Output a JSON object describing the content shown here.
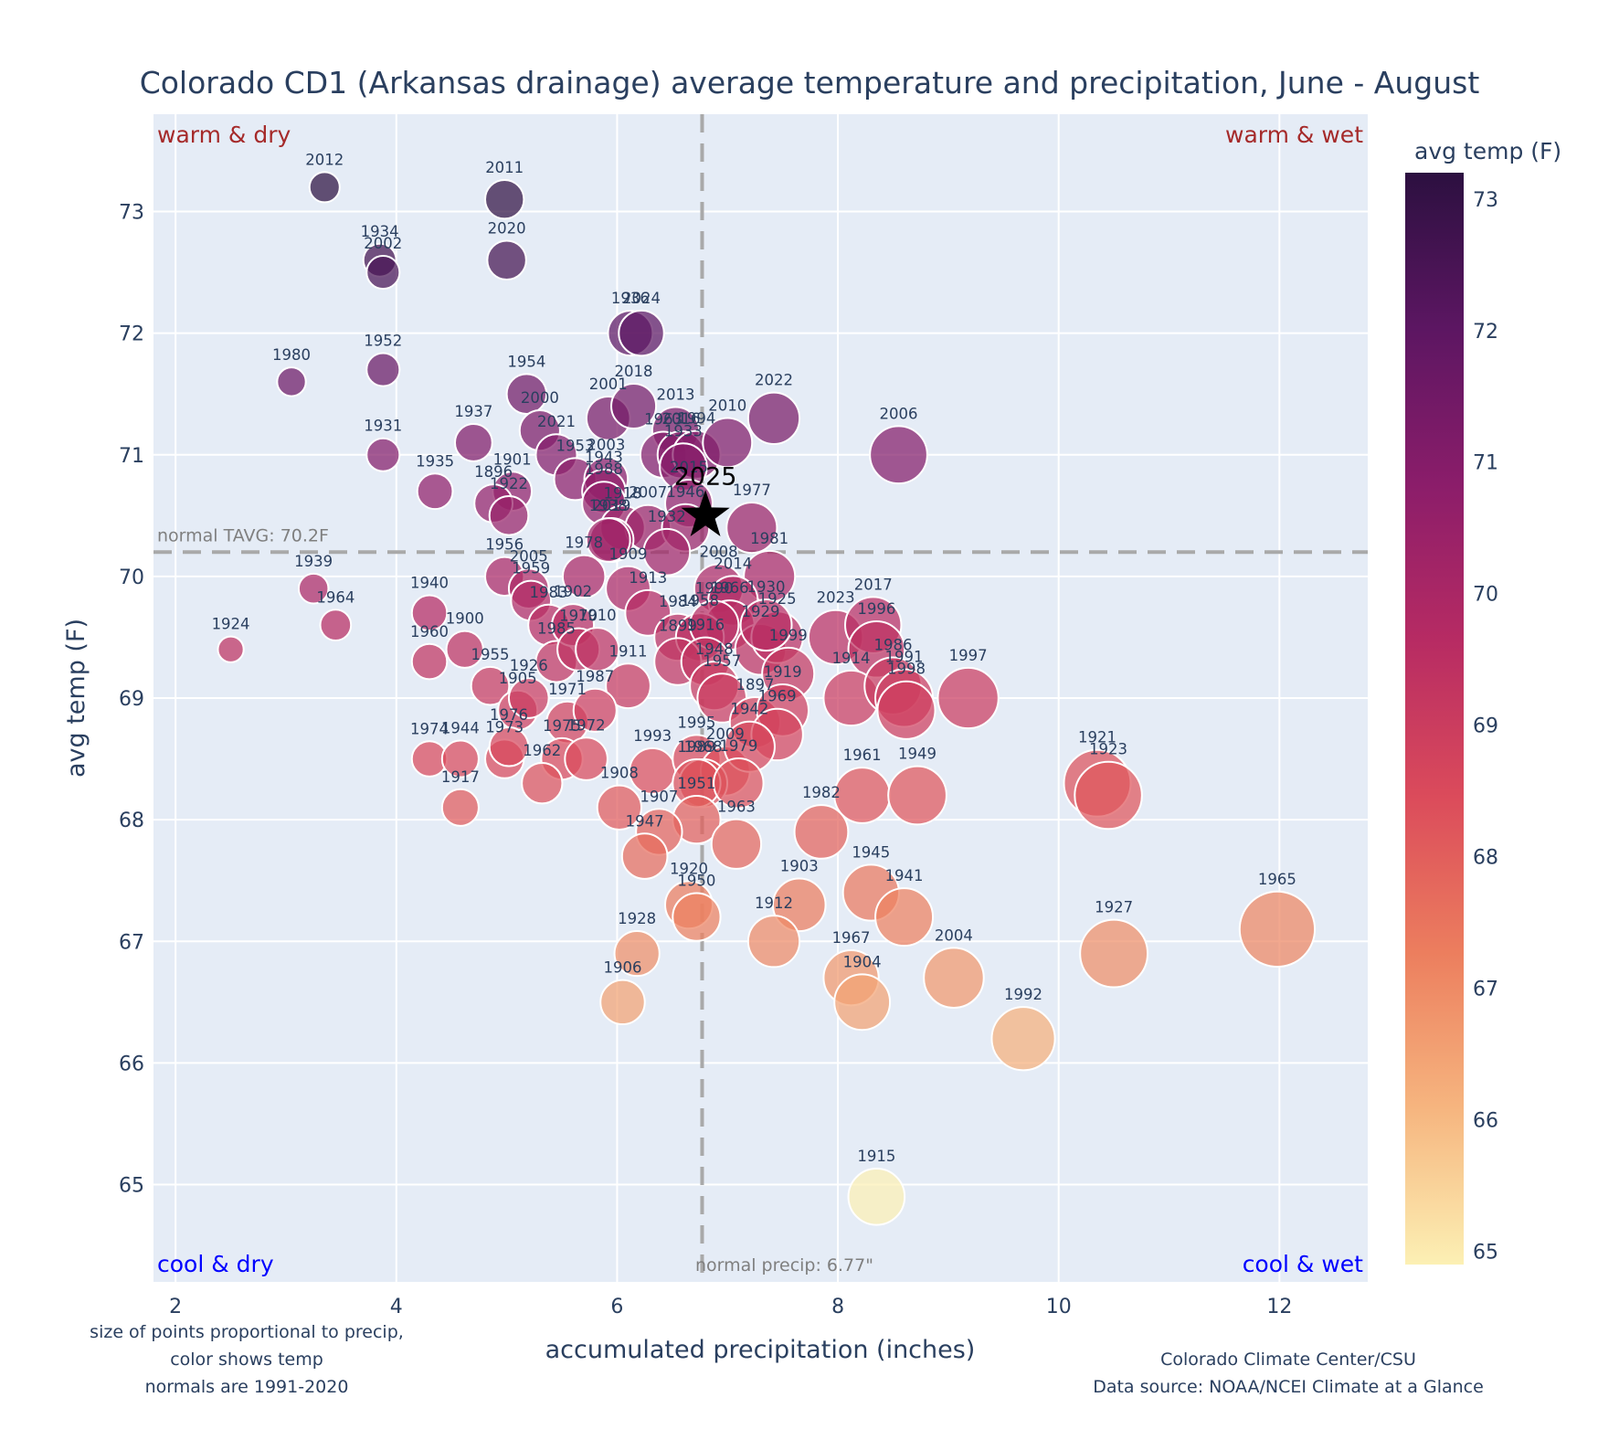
{
  "chart_data": {
    "type": "scatter",
    "title": "Colorado CD1 (Arkansas drainage) average temperature and precipitation, June - August",
    "xlabel": "accumulated precipitation (inches)",
    "ylabel": "avg temp (F)",
    "xlim": [
      1.8,
      12.8
    ],
    "ylim": [
      64.2,
      73.8
    ],
    "x_ticks": [
      2,
      4,
      6,
      8,
      10,
      12
    ],
    "y_ticks": [
      65,
      66,
      67,
      68,
      69,
      70,
      71,
      72,
      73
    ],
    "grid": true,
    "colorbar": {
      "title": "avg temp (F)",
      "range": [
        64.9,
        73.2
      ],
      "ticks": [
        65,
        66,
        67,
        68,
        69,
        70,
        71,
        72,
        73
      ],
      "colorscale": [
        "#fcf0b4",
        "#f6b57f",
        "#ec7e5e",
        "#db4b5b",
        "#b72b63",
        "#8b1d6a",
        "#5c1662",
        "#2c1040"
      ]
    },
    "normals": {
      "temp": 70.2,
      "temp_label": "normal TAVG: 70.2F",
      "precip": 6.77,
      "precip_label": "normal precip: 6.77\""
    },
    "quadrants": {
      "top_left": "warm & dry",
      "top_right": "warm & wet",
      "bottom_left": "cool & dry",
      "bottom_right": "cool & wet"
    },
    "highlight": {
      "year": "2025",
      "x": 6.8,
      "y": 70.5
    },
    "notes": {
      "left": [
        "size of points proportional to precip,",
        "color shows temp",
        "normals are 1991-2020"
      ],
      "right": [
        "Colorado Climate Center/CSU",
        "Data source: NOAA/NCEI Climate at a Glance"
      ]
    },
    "points": [
      {
        "year": "2012",
        "x": 3.35,
        "y": 73.2
      },
      {
        "year": "2011",
        "x": 4.98,
        "y": 73.1
      },
      {
        "year": "1934",
        "x": 3.85,
        "y": 72.6
      },
      {
        "year": "2002",
        "x": 3.88,
        "y": 72.5
      },
      {
        "year": "2020",
        "x": 5.0,
        "y": 72.6
      },
      {
        "year": "1936",
        "x": 6.12,
        "y": 72.0
      },
      {
        "year": "2024",
        "x": 6.22,
        "y": 72.0
      },
      {
        "year": "1980",
        "x": 3.05,
        "y": 71.6
      },
      {
        "year": "1952",
        "x": 3.88,
        "y": 71.7
      },
      {
        "year": "1954",
        "x": 5.18,
        "y": 71.5
      },
      {
        "year": "2022",
        "x": 7.42,
        "y": 71.3
      },
      {
        "year": "2006",
        "x": 8.55,
        "y": 71.0
      },
      {
        "year": "1931",
        "x": 3.88,
        "y": 71.0
      },
      {
        "year": "1937",
        "x": 4.7,
        "y": 71.1
      },
      {
        "year": "2000",
        "x": 5.3,
        "y": 71.2
      },
      {
        "year": "2001",
        "x": 5.92,
        "y": 71.3
      },
      {
        "year": "2018",
        "x": 6.15,
        "y": 71.4
      },
      {
        "year": "2013",
        "x": 6.53,
        "y": 71.2
      },
      {
        "year": "1960b",
        "label": "1963",
        "x": 6.42,
        "y": 71.0
      },
      {
        "year": "2016",
        "x": 6.58,
        "y": 71.0
      },
      {
        "year": "1994",
        "x": 6.72,
        "y": 71.0
      },
      {
        "year": "2010",
        "x": 7.0,
        "y": 71.1
      },
      {
        "year": "2021",
        "x": 5.45,
        "y": 71.0
      },
      {
        "year": "1953",
        "x": 5.62,
        "y": 70.8
      },
      {
        "year": "2003",
        "x": 5.9,
        "y": 70.8
      },
      {
        "year": "1943",
        "x": 5.88,
        "y": 70.7
      },
      {
        "year": "1933",
        "x": 6.6,
        "y": 70.9
      },
      {
        "year": "1935",
        "x": 4.35,
        "y": 70.7
      },
      {
        "year": "1901",
        "x": 5.05,
        "y": 70.7
      },
      {
        "year": "1896",
        "x": 4.88,
        "y": 70.6
      },
      {
        "year": "1922",
        "x": 5.02,
        "y": 70.5
      },
      {
        "year": "1988",
        "x": 5.88,
        "y": 70.6
      },
      {
        "year": "1918",
        "x": 6.05,
        "y": 70.4
      },
      {
        "year": "2007",
        "x": 6.28,
        "y": 70.4
      },
      {
        "year": "2015",
        "x": 6.65,
        "y": 70.6
      },
      {
        "year": "2019",
        "x": 5.95,
        "y": 70.3
      },
      {
        "year": "1946",
        "x": 6.62,
        "y": 70.4
      },
      {
        "year": "1977",
        "x": 7.22,
        "y": 70.4
      },
      {
        "year": "1938",
        "x": 5.92,
        "y": 70.3
      },
      {
        "year": "1932",
        "x": 6.45,
        "y": 70.2
      },
      {
        "year": "1956",
        "x": 4.98,
        "y": 70.0
      },
      {
        "year": "2005",
        "x": 5.2,
        "y": 69.9
      },
      {
        "year": "1959",
        "x": 5.22,
        "y": 69.8
      },
      {
        "year": "1983",
        "x": 5.38,
        "y": 69.6
      },
      {
        "year": "1978",
        "x": 5.7,
        "y": 70.0
      },
      {
        "year": "1981",
        "x": 7.38,
        "y": 70.0
      },
      {
        "year": "2008",
        "x": 6.92,
        "y": 69.9
      },
      {
        "year": "2014",
        "x": 7.05,
        "y": 69.8
      },
      {
        "year": "1909",
        "x": 6.1,
        "y": 69.9
      },
      {
        "year": "1966",
        "x": 7.02,
        "y": 69.6
      },
      {
        "year": "1939",
        "x": 3.25,
        "y": 69.9
      },
      {
        "year": "1964",
        "x": 3.45,
        "y": 69.6
      },
      {
        "year": "1940",
        "x": 4.3,
        "y": 69.7
      },
      {
        "year": "1900",
        "x": 4.62,
        "y": 69.4
      },
      {
        "year": "1960",
        "x": 4.3,
        "y": 69.3
      },
      {
        "year": "1985",
        "x": 5.45,
        "y": 69.3
      },
      {
        "year": "1902",
        "x": 5.6,
        "y": 69.6
      },
      {
        "year": "1970",
        "x": 5.65,
        "y": 69.4
      },
      {
        "year": "1910",
        "x": 5.82,
        "y": 69.4
      },
      {
        "year": "1913",
        "x": 6.28,
        "y": 69.7
      },
      {
        "year": "1984",
        "x": 6.55,
        "y": 69.5
      },
      {
        "year": "1939b",
        "label": "1958",
        "x": 6.75,
        "y": 69.5
      },
      {
        "year": "1990",
        "x": 6.88,
        "y": 69.6
      },
      {
        "year": "1899",
        "x": 6.55,
        "y": 69.3
      },
      {
        "year": "1929",
        "x": 7.3,
        "y": 69.4
      },
      {
        "year": "1925",
        "x": 7.45,
        "y": 69.5
      },
      {
        "year": "1930",
        "x": 7.35,
        "y": 69.6
      },
      {
        "year": "2023",
        "x": 7.98,
        "y": 69.5
      },
      {
        "year": "2017",
        "x": 8.32,
        "y": 69.6
      },
      {
        "year": "1996",
        "x": 8.35,
        "y": 69.4
      },
      {
        "year": "1911",
        "x": 6.1,
        "y": 69.1
      },
      {
        "year": "1916",
        "x": 6.8,
        "y": 69.3
      },
      {
        "year": "1999",
        "x": 7.55,
        "y": 69.2
      },
      {
        "year": "1914",
        "x": 8.12,
        "y": 69.0
      },
      {
        "year": "1986",
        "x": 8.5,
        "y": 69.1
      },
      {
        "year": "1991",
        "x": 8.6,
        "y": 69.0
      },
      {
        "year": "1998",
        "x": 8.62,
        "y": 68.9
      },
      {
        "year": "1997",
        "x": 9.18,
        "y": 69.0
      },
      {
        "year": "1955",
        "x": 4.85,
        "y": 69.1
      },
      {
        "year": "1905",
        "x": 5.1,
        "y": 68.9
      },
      {
        "year": "1926",
        "x": 5.2,
        "y": 69.0
      },
      {
        "year": "1971",
        "x": 5.55,
        "y": 68.8
      },
      {
        "year": "1987",
        "x": 5.8,
        "y": 68.9
      },
      {
        "year": "1948",
        "x": 6.88,
        "y": 69.1
      },
      {
        "year": "1957",
        "x": 6.95,
        "y": 69.0
      },
      {
        "year": "1897",
        "x": 7.25,
        "y": 68.8
      },
      {
        "year": "1919",
        "x": 7.5,
        "y": 68.9
      },
      {
        "year": "1969",
        "x": 7.45,
        "y": 68.7
      },
      {
        "year": "1974",
        "x": 4.3,
        "y": 68.5
      },
      {
        "year": "1944",
        "x": 4.58,
        "y": 68.5
      },
      {
        "year": "1973",
        "x": 4.98,
        "y": 68.5
      },
      {
        "year": "1976",
        "x": 5.02,
        "y": 68.6
      },
      {
        "year": "1975",
        "x": 5.5,
        "y": 68.5
      },
      {
        "year": "1972",
        "x": 5.72,
        "y": 68.5
      },
      {
        "year": "1962",
        "x": 5.32,
        "y": 68.3
      },
      {
        "year": "1993",
        "x": 6.32,
        "y": 68.4
      },
      {
        "year": "1995",
        "x": 6.72,
        "y": 68.5
      },
      {
        "year": "2009",
        "x": 6.98,
        "y": 68.4
      },
      {
        "year": "1968",
        "x": 6.78,
        "y": 68.3
      },
      {
        "year": "1942",
        "x": 7.2,
        "y": 68.6
      },
      {
        "year": "1989",
        "x": 6.72,
        "y": 68.3
      },
      {
        "year": "1979",
        "x": 7.1,
        "y": 68.3
      },
      {
        "year": "1961",
        "x": 8.22,
        "y": 68.2
      },
      {
        "year": "1949",
        "x": 8.72,
        "y": 68.2
      },
      {
        "year": "1921",
        "x": 10.35,
        "y": 68.3
      },
      {
        "year": "1923",
        "x": 10.45,
        "y": 68.2
      },
      {
        "year": "1917",
        "x": 4.58,
        "y": 68.1
      },
      {
        "year": "1908",
        "x": 6.02,
        "y": 68.1
      },
      {
        "year": "1951",
        "x": 6.72,
        "y": 68.0
      },
      {
        "year": "1982",
        "x": 7.85,
        "y": 67.9
      },
      {
        "year": "1907",
        "x": 6.38,
        "y": 67.9
      },
      {
        "year": "1979b",
        "label": "1963",
        "x": 7.08,
        "y": 67.8
      },
      {
        "year": "1929b",
        "label": "1947",
        "x": 6.25,
        "y": 67.7
      },
      {
        "year": "1945",
        "x": 8.3,
        "y": 67.4
      },
      {
        "year": "1903",
        "x": 7.65,
        "y": 67.3
      },
      {
        "year": "1941",
        "x": 8.6,
        "y": 67.2
      },
      {
        "year": "1920",
        "x": 6.65,
        "y": 67.3
      },
      {
        "year": "1950",
        "x": 6.72,
        "y": 67.2
      },
      {
        "year": "1965",
        "x": 11.98,
        "y": 67.1
      },
      {
        "year": "1912",
        "x": 7.42,
        "y": 67.0
      },
      {
        "year": "1928",
        "x": 6.18,
        "y": 66.9
      },
      {
        "year": "1927",
        "x": 10.5,
        "y": 66.9
      },
      {
        "year": "1967",
        "x": 8.12,
        "y": 66.7
      },
      {
        "year": "2004",
        "x": 9.05,
        "y": 66.7
      },
      {
        "year": "1904",
        "x": 8.22,
        "y": 66.5
      },
      {
        "year": "1906",
        "x": 6.05,
        "y": 66.5
      },
      {
        "year": "1992",
        "x": 9.68,
        "y": 66.2
      },
      {
        "year": "1924",
        "x": 2.5,
        "y": 69.4
      },
      {
        "year": "1915",
        "x": 8.35,
        "y": 64.9
      }
    ]
  }
}
